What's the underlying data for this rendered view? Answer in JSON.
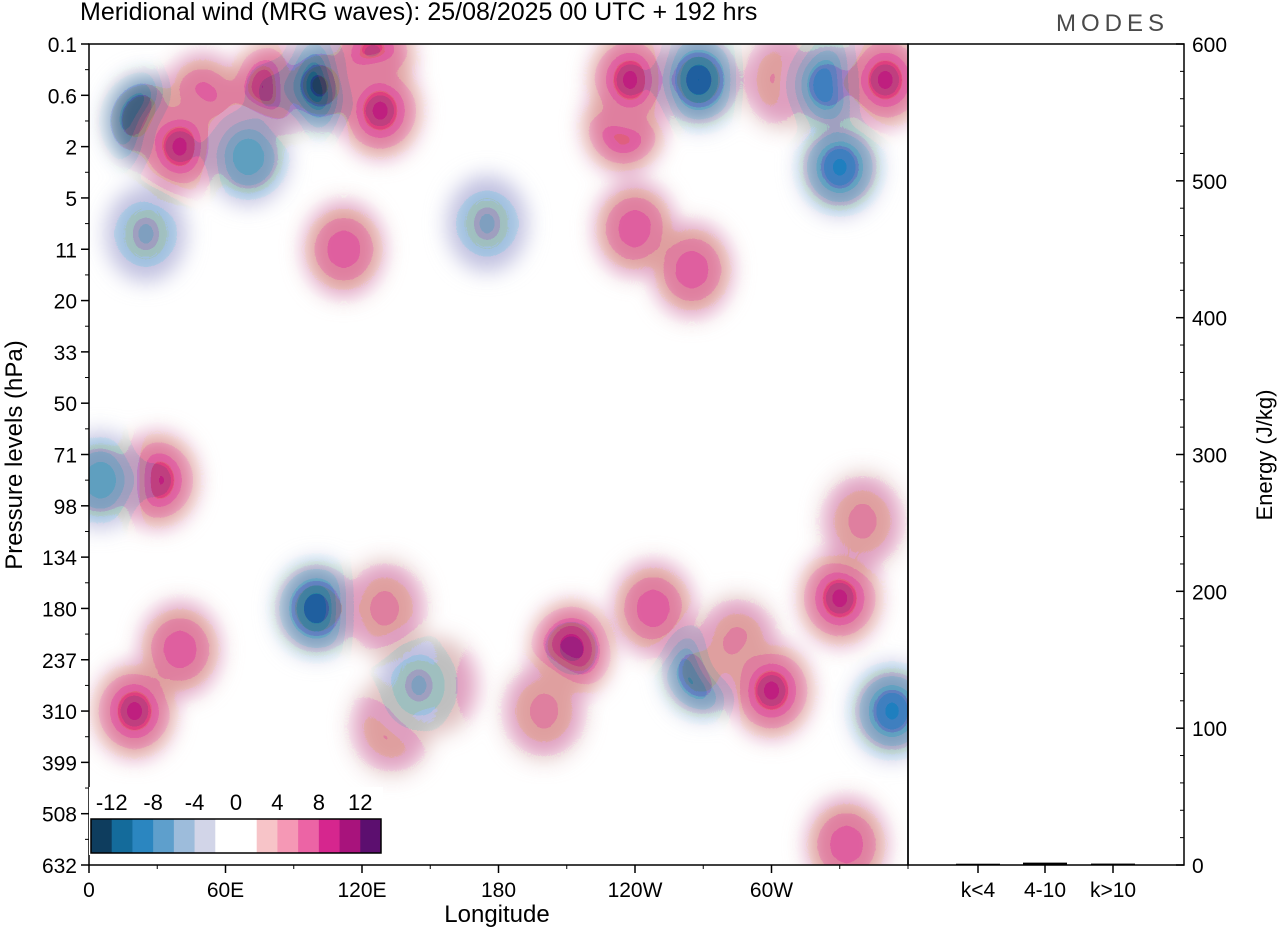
{
  "title": "Meridional wind (MRG waves):  25/08/2025  00 UTC  + 192 hrs",
  "brand": "MODES",
  "chart_data": [
    {
      "type": "heatmap",
      "title": "Meridional wind (MRG waves):  25/08/2025  00 UTC  + 192 hrs",
      "xlabel": "Longitude",
      "ylabel": "Pressure levels (hPa)",
      "x_ticks": [
        {
          "lon": 0,
          "label": "0"
        },
        {
          "lon": 60,
          "label": "60E"
        },
        {
          "lon": 120,
          "label": "120E"
        },
        {
          "lon": 180,
          "label": "180"
        },
        {
          "lon": 240,
          "label": "120W"
        },
        {
          "lon": 300,
          "label": "60W"
        }
      ],
      "xlim": [
        0,
        360
      ],
      "y_levels": [
        "0.1",
        "0.6",
        "2",
        "5",
        "11",
        "20",
        "33",
        "50",
        "71",
        "98",
        "134",
        "180",
        "237",
        "310",
        "399",
        "508",
        "632"
      ],
      "colorbar": {
        "labels": [
          "-12",
          "-8",
          "-4",
          "0",
          "4",
          "8",
          "12"
        ],
        "colors": [
          "#0e3d5e",
          "#146b9b",
          "#2b86c0",
          "#5e9fcc",
          "#9dbcdb",
          "#d2d5e8",
          "#ffffff",
          "#ffffff",
          "#f7c4c8",
          "#f598b5",
          "#ec64a5",
          "#d6268e",
          "#a8137c",
          "#5c0f6f"
        ]
      },
      "features": [
        {
          "lon": 25,
          "level": 1.5,
          "value": -16
        },
        {
          "lon": 50,
          "level": 1.1,
          "value": 5
        },
        {
          "lon": 80,
          "level": 0.9,
          "value": 10
        },
        {
          "lon": 102,
          "level": 0.8,
          "value": -12
        },
        {
          "lon": 125,
          "level": 0.3,
          "value": 8
        },
        {
          "lon": 128,
          "level": 1.3,
          "value": 7
        },
        {
          "lon": 40,
          "level": 2.0,
          "value": 7
        },
        {
          "lon": 70,
          "level": 2.2,
          "value": -5
        },
        {
          "lon": 235,
          "level": 1.6,
          "value": 7
        },
        {
          "lon": 238,
          "level": 0.7,
          "value": 8
        },
        {
          "lon": 268,
          "level": 0.7,
          "value": -10
        },
        {
          "lon": 305,
          "level": 0.7,
          "value": 4
        },
        {
          "lon": 325,
          "level": 0.8,
          "value": -8
        },
        {
          "lon": 350,
          "level": 0.7,
          "value": 8
        },
        {
          "lon": 330,
          "level": 2.4,
          "value": -7
        },
        {
          "lon": 240,
          "level": 3.6,
          "value": 5
        },
        {
          "lon": 265,
          "level": 4.4,
          "value": 5
        },
        {
          "lon": 112,
          "level": 4.0,
          "value": 5
        },
        {
          "lon": 175,
          "level": 3.5,
          "value": -4
        },
        {
          "lon": 25,
          "level": 3.7,
          "value": -4
        },
        {
          "lon": 30,
          "level": 8.5,
          "value": 8
        },
        {
          "lon": 5,
          "level": 8.5,
          "value": -5
        },
        {
          "lon": 100,
          "level": 11.0,
          "value": -9
        },
        {
          "lon": 40,
          "level": 11.8,
          "value": 6
        },
        {
          "lon": 20,
          "level": 13.0,
          "value": 7
        },
        {
          "lon": 130,
          "level": 11.0,
          "value": 4
        },
        {
          "lon": 133,
          "level": 13.3,
          "value": 3
        },
        {
          "lon": 153,
          "level": 12.5,
          "value": 5
        },
        {
          "lon": 145,
          "level": 12.5,
          "value": -4
        },
        {
          "lon": 212,
          "level": 11.8,
          "value": 10
        },
        {
          "lon": 200,
          "level": 13.0,
          "value": 3
        },
        {
          "lon": 248,
          "level": 11.0,
          "value": 5
        },
        {
          "lon": 270,
          "level": 12.2,
          "value": -9
        },
        {
          "lon": 285,
          "level": 11.7,
          "value": 4
        },
        {
          "lon": 300,
          "level": 12.6,
          "value": 7
        },
        {
          "lon": 330,
          "level": 10.8,
          "value": 8
        },
        {
          "lon": 340,
          "level": 9.3,
          "value": 4
        },
        {
          "lon": 353,
          "level": 13.0,
          "value": -8
        },
        {
          "lon": 333,
          "level": 15.6,
          "value": 6
        }
      ]
    },
    {
      "type": "bar",
      "categories": [
        "k<4",
        "4-10",
        "k>10"
      ],
      "values": [
        0.2,
        1.0,
        0.3
      ],
      "ylabel": "Energy (J/kg)",
      "ylim": [
        0,
        600
      ],
      "y_ticks": [
        "0",
        "100",
        "200",
        "300",
        "400",
        "500",
        "600"
      ]
    }
  ]
}
